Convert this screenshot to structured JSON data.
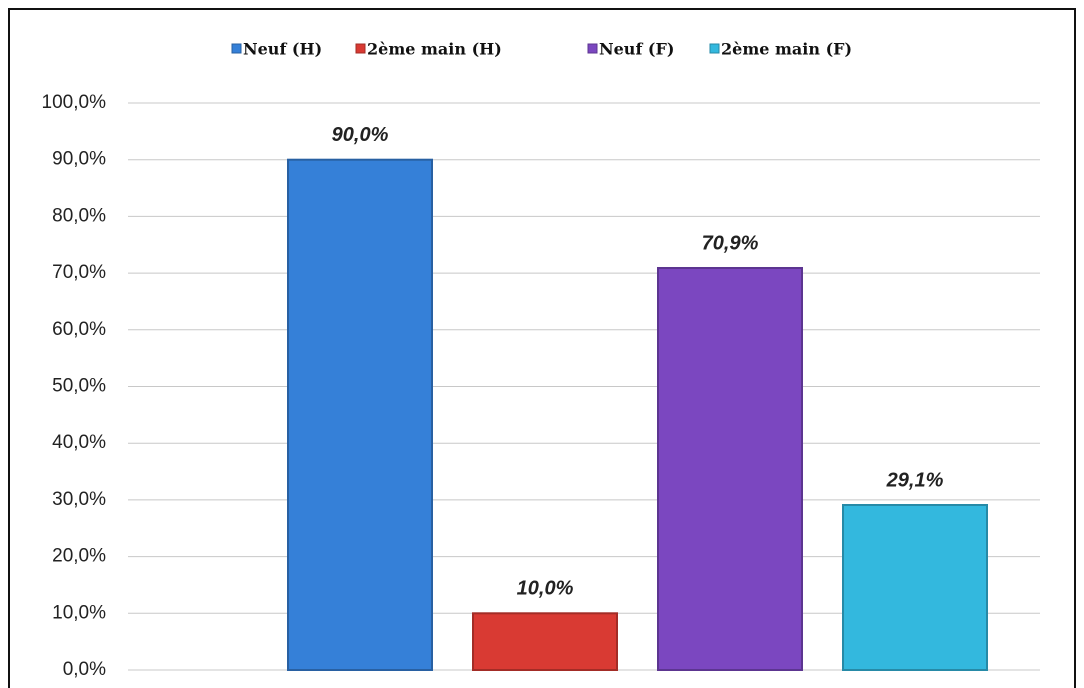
{
  "chart_data": {
    "type": "bar",
    "series": [
      {
        "name": "Neuf (H)",
        "color": "#3580d8",
        "values": [
          90
        ],
        "value_labels": [
          "90,0%"
        ]
      },
      {
        "name": "2ème main (H)",
        "color": "#d93a33",
        "values": [
          10
        ],
        "value_labels": [
          "10,0%"
        ]
      },
      {
        "name": "Neuf (F)",
        "color": "#7b47c0",
        "values": [
          70.9
        ],
        "value_labels": [
          "70,9%"
        ]
      },
      {
        "name": "2ème main (F)",
        "color": "#33b8de",
        "values": [
          29.1
        ],
        "value_labels": [
          "29,1%"
        ]
      }
    ],
    "ylim": [
      0,
      100
    ],
    "yticks": [
      {
        "value": 0,
        "label": "0,0%"
      },
      {
        "value": 10,
        "label": "10,0%"
      },
      {
        "value": 20,
        "label": "20,0%"
      },
      {
        "value": 30,
        "label": "30,0%"
      },
      {
        "value": 40,
        "label": "40,0%"
      },
      {
        "value": 50,
        "label": "50,0%"
      },
      {
        "value": 60,
        "label": "60,0%"
      },
      {
        "value": 70,
        "label": "70,0%"
      },
      {
        "value": 80,
        "label": "80,0%"
      },
      {
        "value": 90,
        "label": "90,0%"
      },
      {
        "value": 100,
        "label": "100,0%"
      }
    ],
    "grid": true
  }
}
